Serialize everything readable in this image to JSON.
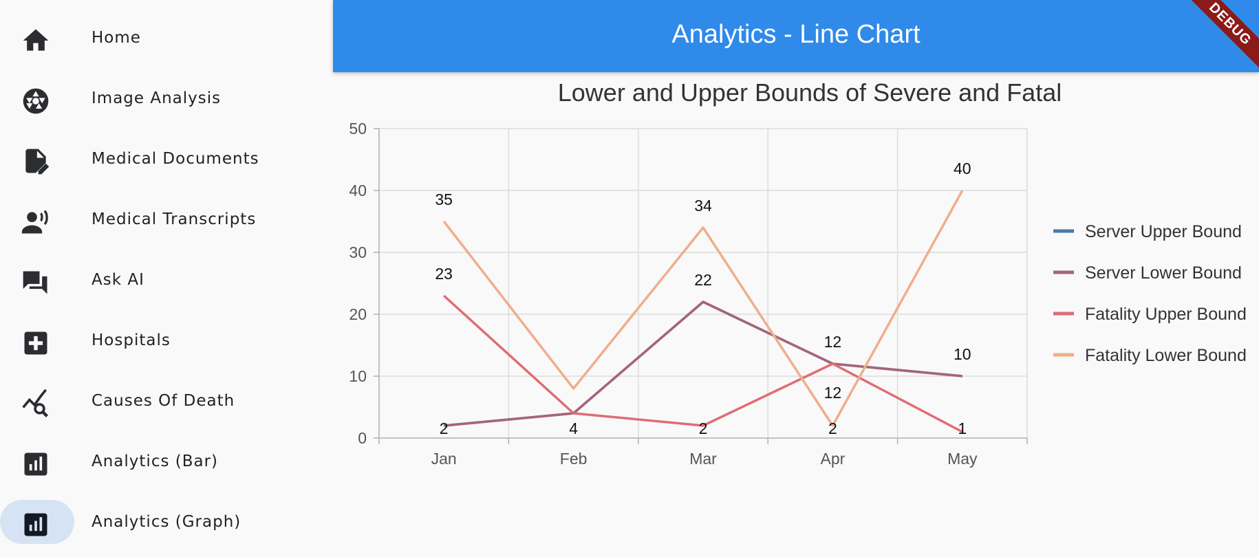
{
  "sidebar": {
    "items": [
      {
        "label": "Home",
        "icon": "home-icon"
      },
      {
        "label": "Image Analysis",
        "icon": "camera-shutter-icon"
      },
      {
        "label": "Medical Documents",
        "icon": "document-edit-icon"
      },
      {
        "label": "Medical Transcripts",
        "icon": "person-voice-icon"
      },
      {
        "label": "Ask AI",
        "icon": "chat-bubbles-icon"
      },
      {
        "label": "Hospitals",
        "icon": "hospital-cross-icon"
      },
      {
        "label": "Causes Of Death",
        "icon": "chart-search-icon"
      },
      {
        "label": "Analytics (Bar)",
        "icon": "bar-chart-icon"
      },
      {
        "label": "Analytics (Graph)",
        "icon": "graph-chart-icon",
        "selected": true
      }
    ]
  },
  "appbar": {
    "title": "Analytics - Line Chart",
    "debug_banner": "DEBUG"
  },
  "colors": {
    "appbar": "#2f8ae9",
    "selected_pill": "#d6e3f5",
    "server_upper": "#4b79a8",
    "server_lower": "#a8637c",
    "fatality_upper": "#e06c75",
    "fatality_lower": "#efae8b"
  },
  "chart_data": {
    "type": "line",
    "title": "Lower and Upper Bounds of Severe and Fatal",
    "categories": [
      "Jan",
      "Feb",
      "Mar",
      "Apr",
      "May"
    ],
    "ylim": [
      0,
      50
    ],
    "yticks": [
      0,
      10,
      20,
      30,
      40,
      50
    ],
    "grid": true,
    "legend": "right",
    "series": [
      {
        "name": "Server Upper Bound",
        "color": "#4b79a8",
        "values": [
          2,
          4,
          22,
          12,
          10
        ]
      },
      {
        "name": "Server Lower Bound",
        "color": "#a8637c",
        "values": [
          2,
          4,
          22,
          12,
          10
        ]
      },
      {
        "name": "Fatality Upper Bound",
        "color": "#e06c75",
        "values": [
          23,
          4,
          2,
          12,
          1
        ]
      },
      {
        "name": "Fatality Lower Bound",
        "color": "#efae8b",
        "values": [
          35,
          8,
          34,
          2,
          40
        ]
      }
    ],
    "data_labels": [
      {
        "x": "Jan",
        "text": "35"
      },
      {
        "x": "Jan",
        "text": "23"
      },
      {
        "x": "Jan",
        "text": "2"
      },
      {
        "x": "Feb",
        "text": "4"
      },
      {
        "x": "Mar",
        "text": "34"
      },
      {
        "x": "Mar",
        "text": "22"
      },
      {
        "x": "Mar",
        "text": "2"
      },
      {
        "x": "Apr",
        "text": "12"
      },
      {
        "x": "Apr",
        "text": "12"
      },
      {
        "x": "Apr",
        "text": "2"
      },
      {
        "x": "May",
        "text": "40"
      },
      {
        "x": "May",
        "text": "10"
      },
      {
        "x": "May",
        "text": "1"
      }
    ]
  }
}
